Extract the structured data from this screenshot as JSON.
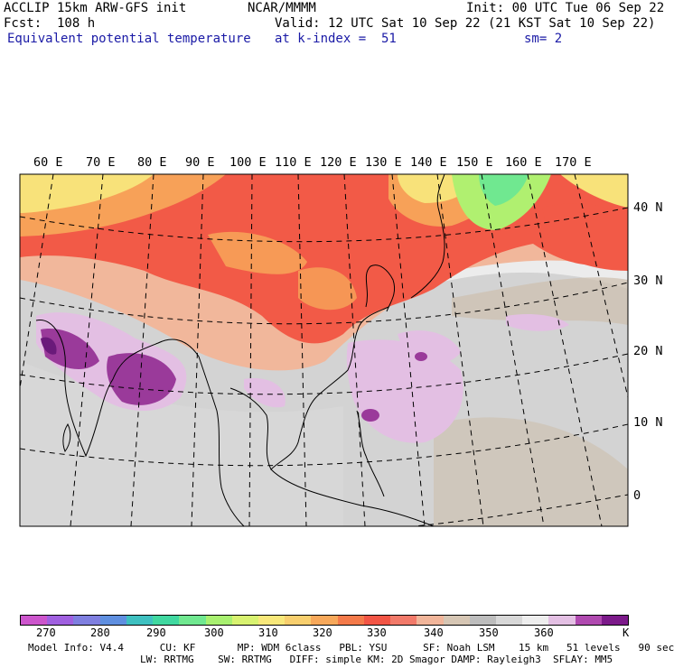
{
  "header": {
    "model_name": "ACCLIP 15km ARW-GFS init",
    "center": "NCAR/MMMM",
    "init": "Init: 00 UTC Tue 06 Sep 22",
    "fcst": "Fcst:  108 h",
    "valid": "Valid: 12 UTC Sat 10 Sep 22 (21 KST Sat 10 Sep 22)",
    "field": "Equivalent potential temperature",
    "level": "at k-index =  51",
    "smoothing": "sm= 2"
  },
  "map": {
    "lon_labels": [
      "60 E",
      "70 E",
      "80 E",
      "90 E",
      "100 E",
      "110 E",
      "120 E",
      "130 E",
      "140 E",
      "150 E",
      "160 E",
      "170 E"
    ],
    "lat_labels": [
      "40 N",
      "30 N",
      "20 N",
      "10 N",
      "0"
    ],
    "colors": {
      "low_purple": "#cf5fcf",
      "cold": "#b0f070",
      "warm_yellow": "#f8e27a",
      "orange": "#f7a158",
      "red": "#f25a47",
      "salmon": "#f1b79b",
      "tan": "#d2c3b0",
      "gray": "#bfbfbf",
      "light_gray": "#ececec",
      "lavender": "#e3bfe3",
      "magenta": "#9a3a9a",
      "dark_purple": "#6a1a7a"
    }
  },
  "colorbar": {
    "colors": [
      "#cc55cc",
      "#a060e0",
      "#7f7fe0",
      "#5f8fe0",
      "#3ec0c0",
      "#40d8a0",
      "#70e890",
      "#a8f070",
      "#d8f270",
      "#f8e87a",
      "#f8cf6e",
      "#f7a85a",
      "#f47a4a",
      "#f25545",
      "#f27a6a",
      "#f1b59a",
      "#d6c6b4",
      "#bdbdbd",
      "#d8d8d8",
      "#eeeeee",
      "#e4c0e4",
      "#b04ab0",
      "#7c1a8a"
    ],
    "labels": [
      "270",
      "280",
      "290",
      "300",
      "310",
      "320",
      "330",
      "340",
      "350",
      "360",
      "K"
    ]
  },
  "model_info": {
    "line1": "Model Info: V4.4      CU: KF       MP: WDM 6class   PBL: YSU      SF: Noah LSM    15 km   51 levels   90 sec",
    "line2": "LW: RRTMG    SW: RRTMG   DIFF: simple KM: 2D Smagor DAMP: Rayleigh3  SFLAY: MM5"
  }
}
